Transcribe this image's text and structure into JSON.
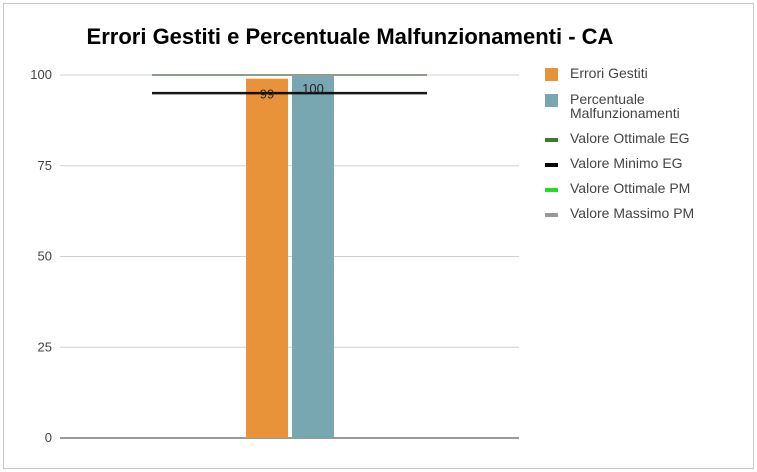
{
  "chart_data": {
    "type": "bar",
    "title": "Errori Gestiti e Percentuale Malfunzionamenti - CA",
    "ylim": [
      0,
      100
    ],
    "yticks": [
      "0",
      "25",
      "50",
      "75",
      "100"
    ],
    "grid": true,
    "legend_position": "right",
    "series": [
      {
        "name": "Errori Gestiti",
        "value": 99,
        "label": "99",
        "color": "#e8923a"
      },
      {
        "name": "Percentuale Malfunzionamenti",
        "value": 100,
        "label": "100",
        "color": "#78a6b1"
      }
    ],
    "reference_lines": [
      {
        "name": "Valore Ottimale EG",
        "value": 100,
        "color": "#3d7a2a"
      },
      {
        "name": "Valore Minimo EG",
        "value": 95,
        "color": "#000000"
      },
      {
        "name": "Valore Ottimale PM",
        "value": 100,
        "color": "#22dd22"
      },
      {
        "name": "Valore Massimo PM",
        "value": 100,
        "color": "#999999"
      }
    ]
  }
}
